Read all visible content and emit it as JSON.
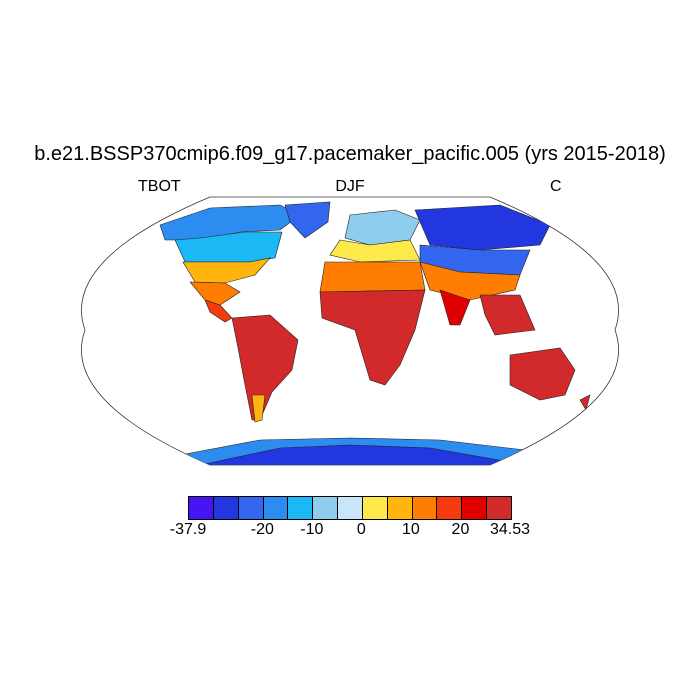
{
  "title": "b.e21.BSSP370cmip6.f09_g17.pacemaker_pacific.005 (yrs 2015-2018)",
  "left_label": "TBOT",
  "center_label": "DJF",
  "right_label": "C",
  "colorbar": {
    "colors": [
      "#4615f2",
      "#2237e0",
      "#3366ee",
      "#2d8cf0",
      "#1ab8f5",
      "#8fcdee",
      "#c8e6f7",
      "#ffe94a",
      "#ffb50e",
      "#ff7d00",
      "#f53a0d",
      "#e00000",
      "#d22a2a"
    ],
    "labels": [
      {
        "text": "-37.9",
        "index": 0
      },
      {
        "text": "-20",
        "index": 3
      },
      {
        "text": "-10",
        "index": 5
      },
      {
        "text": "0",
        "index": 7
      },
      {
        "text": "10",
        "index": 9
      },
      {
        "text": "20",
        "index": 11
      },
      {
        "text": "34.53",
        "index": 13
      }
    ]
  }
}
